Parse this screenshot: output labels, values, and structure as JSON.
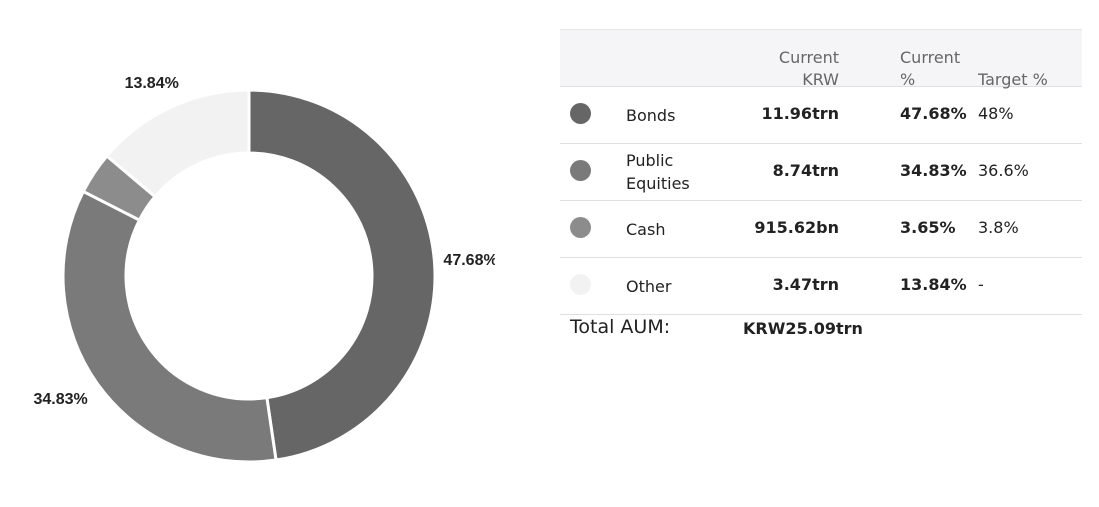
{
  "chart_data": {
    "type": "donut",
    "values": [
      47.68,
      34.83,
      3.65,
      13.84
    ],
    "value_labels": [
      "47.68%",
      "34.83%",
      null,
      "13.84%"
    ],
    "colors": [
      "#666666",
      "#7a7a7a",
      "#8c8c8c",
      "#f2f2f2"
    ]
  },
  "table": {
    "columns": [
      "Current KRW",
      "Current %",
      "Target %"
    ],
    "rows": [
      {
        "name": "Bonds",
        "krw": "11.96trn",
        "pct": "47.68%",
        "target": "48%"
      },
      {
        "name": "Public Equities",
        "krw": "8.74trn",
        "pct": "34.83%",
        "target": "36.6%"
      },
      {
        "name": "Cash",
        "krw": "915.62bn",
        "pct": "3.65%",
        "target": "3.8%"
      },
      {
        "name": "Other",
        "krw": "3.47trn",
        "pct": "13.84%",
        "target": "-"
      }
    ],
    "total": {
      "label": "Total AUM:",
      "value": "KRW25.09trn"
    }
  }
}
